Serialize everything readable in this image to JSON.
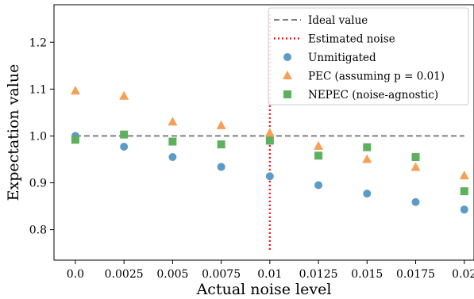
{
  "chart_data": {
    "type": "scatter",
    "xlabel": "Actual noise level",
    "ylabel": "Expectation value",
    "x": [
      0.0,
      0.0025,
      0.005,
      0.0075,
      0.01,
      0.0125,
      0.015,
      0.0175,
      0.02
    ],
    "x_tick_labels": [
      "0.0",
      "0.0025",
      "0.005",
      "0.0075",
      "0.01",
      "0.0125",
      "0.015",
      "0.0175",
      "0.02"
    ],
    "xlim": [
      -0.0011,
      0.0205
    ],
    "ylim": [
      0.735,
      1.28
    ],
    "y_ticks": [
      0.8,
      0.9,
      1.0,
      1.1,
      1.2
    ],
    "y_tick_labels": [
      "0.8",
      "0.9",
      "1.0",
      "1.1",
      "1.2"
    ],
    "grid": false,
    "legend_position": "top-right",
    "ideal": {
      "name": "Ideal value",
      "value": 1.0,
      "color": "#7f7f7f"
    },
    "estimated_noise": {
      "name": "Estimated noise",
      "x": 0.01,
      "y_range": [
        0.757,
        1.26
      ],
      "color": "#ff0000"
    },
    "series": [
      {
        "name": "Unmitigated",
        "marker": "circle",
        "color": "#5b9bc8",
        "values": [
          1.0,
          0.977,
          0.955,
          0.934,
          0.914,
          0.895,
          0.877,
          0.859,
          0.843
        ]
      },
      {
        "name": "PEC (assuming p = 0.01)",
        "marker": "triangle",
        "color": "#f5a055",
        "values": [
          1.096,
          1.085,
          1.03,
          1.022,
          1.006,
          0.978,
          0.95,
          0.933,
          0.915
        ]
      },
      {
        "name": "NEPEC (noise-agnostic)",
        "marker": "square",
        "color": "#5db05d",
        "values": [
          0.992,
          1.003,
          0.988,
          0.982,
          0.99,
          0.958,
          0.976,
          0.955,
          0.882
        ]
      }
    ]
  }
}
